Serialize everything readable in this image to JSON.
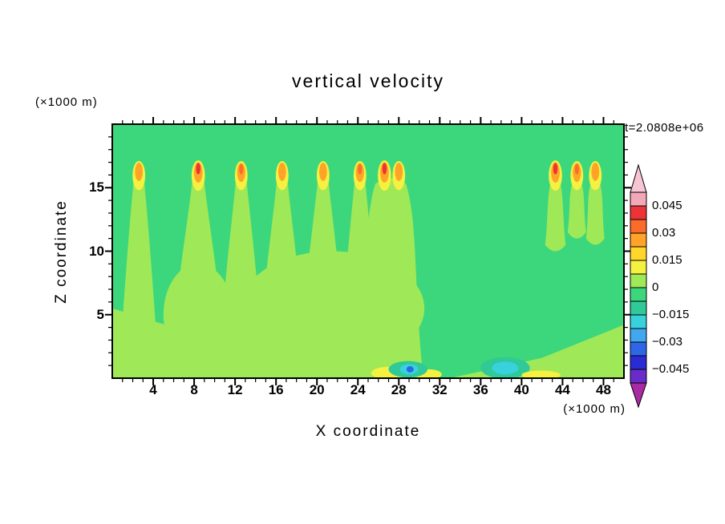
{
  "chart_data": {
    "type": "heatmap",
    "title": "vertical velocity",
    "xlabel": "X coordinate",
    "ylabel": "Z coordinate",
    "x_axis_units": "(×1000 m)",
    "y_axis_units": "(×1000 m)",
    "time_label": "t=2.0808e+06",
    "xlim": [
      0,
      50
    ],
    "ylim": [
      0,
      20
    ],
    "x_ticks": [
      4,
      8,
      12,
      16,
      20,
      24,
      28,
      32,
      36,
      40,
      44,
      48
    ],
    "y_ticks": [
      5,
      10,
      15
    ],
    "x_minor_step": 1,
    "y_minor_step": 1,
    "grid": false,
    "colorbar": {
      "orientation": "vertical",
      "labels": [
        "0.045",
        "0.03",
        "0.015",
        "0",
        "−0.015",
        "−0.03",
        "−0.045"
      ],
      "level_min": -0.0525,
      "level_max": 0.0525,
      "level_step": 0.0075,
      "segment_colors_top_to_bottom": [
        "#F3A8B8",
        "#EC3438",
        "#FB6C2A",
        "#FFA428",
        "#FFD62A",
        "#F4F140",
        "#9FE857",
        "#3CD77C",
        "#30C998",
        "#38D2DC",
        "#41A8F0",
        "#2F66E8",
        "#2B2BD5",
        "#6A2BC9"
      ],
      "top_arrow_color": "#F6C6D4",
      "bottom_arrow_color": "#A92BA4"
    },
    "palette": {
      "green": "#3CD77C",
      "light-green": "#9FE857",
      "yellow": "#F4F140",
      "amber": "#FFD62A",
      "orange": "#FFA428",
      "orange-red": "#FB6C2A",
      "red": "#EC3438",
      "teal": "#30C998",
      "cyan": "#38D2DC",
      "sky": "#41A8F0",
      "blue": "#2F66E8",
      "dark-blue": "#2B2BD5",
      "violet": "#6A2BC9"
    },
    "field": {
      "background": "green",
      "updraft_shade": "light-green",
      "wedges": [
        {
          "points": [
            [
              0,
              0
            ],
            [
              0,
              5.5
            ],
            [
              10,
              3.0
            ],
            [
              20,
              1.6
            ],
            [
              30,
              0.2
            ],
            [
              30,
              0
            ]
          ]
        },
        {
          "points": [
            [
              33,
              0
            ],
            [
              42,
              1.6
            ],
            [
              50,
              4.2
            ],
            [
              50,
              0
            ]
          ]
        }
      ],
      "blobs": [
        {
          "x": 8.4,
          "z": 5.0,
          "rx": 3.4,
          "ry": 4.0
        },
        {
          "x": 21.5,
          "z": 5.5,
          "rx": 9.0,
          "ry": 4.5
        }
      ],
      "plumes": [
        {
          "x": 2.6,
          "base": 0,
          "hw_base": 2.0,
          "hw_top": 0.5,
          "top": 15.6
        },
        {
          "x": 8.4,
          "base": 0,
          "hw_base": 3.0,
          "hw_top": 0.55,
          "top": 15.7
        },
        {
          "x": 12.6,
          "base": 0,
          "hw_base": 2.4,
          "hw_top": 0.5,
          "top": 15.7
        },
        {
          "x": 16.6,
          "base": 0,
          "hw_base": 2.6,
          "hw_top": 0.5,
          "top": 15.7
        },
        {
          "x": 20.6,
          "base": 0,
          "hw_base": 2.6,
          "hw_top": 0.5,
          "top": 15.7
        },
        {
          "x": 24.2,
          "base": 0,
          "hw_base": 2.2,
          "hw_top": 0.5,
          "top": 15.6
        },
        {
          "x": 27.2,
          "base": 0,
          "hw_base": 3.2,
          "hw_top": 1.5,
          "top": 15.3
        },
        {
          "x": 43.3,
          "base": 10.5,
          "hw_base": 1.0,
          "hw_top": 0.45,
          "top": 15.4
        },
        {
          "x": 45.4,
          "base": 11.5,
          "hw_base": 0.9,
          "hw_top": 0.45,
          "top": 15.3
        },
        {
          "x": 47.2,
          "base": 11.0,
          "hw_base": 0.9,
          "hw_top": 0.45,
          "top": 15.3
        }
      ],
      "tips": [
        {
          "x": 2.6,
          "level": "orange"
        },
        {
          "x": 8.4,
          "level": "red"
        },
        {
          "x": 12.6,
          "level": "orange-red"
        },
        {
          "x": 16.6,
          "level": "orange"
        },
        {
          "x": 20.6,
          "level": "orange"
        },
        {
          "x": 24.2,
          "level": "orange-red"
        },
        {
          "x": 26.6,
          "level": "red"
        },
        {
          "x": 28.0,
          "level": "orange"
        },
        {
          "x": 43.3,
          "level": "red"
        },
        {
          "x": 45.4,
          "level": "orange-red"
        },
        {
          "x": 47.2,
          "level": "orange"
        }
      ],
      "bottom_features": [
        {
          "x": 27.0,
          "z": 0.4,
          "rx": 1.7,
          "ry": 0.5,
          "color": "yellow"
        },
        {
          "x": 30.9,
          "z": 0.3,
          "rx": 1.3,
          "ry": 0.4,
          "color": "yellow"
        },
        {
          "x": 28.9,
          "z": 0.7,
          "rx": 1.9,
          "ry": 0.65,
          "color": "teal"
        },
        {
          "x": 29.0,
          "z": 0.7,
          "rx": 0.9,
          "ry": 0.4,
          "color": "cyan"
        },
        {
          "x": 29.1,
          "z": 0.7,
          "rx": 0.35,
          "ry": 0.25,
          "color": "blue"
        },
        {
          "x": 38.4,
          "z": 0.8,
          "rx": 2.4,
          "ry": 0.85,
          "color": "teal"
        },
        {
          "x": 38.4,
          "z": 0.8,
          "rx": 1.3,
          "ry": 0.5,
          "color": "cyan"
        },
        {
          "x": 41.9,
          "z": 0.25,
          "rx": 1.9,
          "ry": 0.35,
          "color": "yellow"
        }
      ]
    }
  }
}
